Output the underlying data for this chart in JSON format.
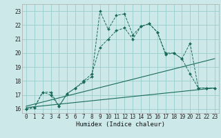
{
  "title": "",
  "xlabel": "Humidex (Indice chaleur)",
  "xlim": [
    -0.5,
    23.5
  ],
  "ylim": [
    15.7,
    23.5
  ],
  "yticks": [
    16,
    17,
    18,
    19,
    20,
    21,
    22,
    23
  ],
  "xticks": [
    0,
    1,
    2,
    3,
    4,
    5,
    6,
    7,
    8,
    9,
    10,
    11,
    12,
    13,
    14,
    15,
    16,
    17,
    18,
    19,
    20,
    21,
    22,
    23
  ],
  "bg_color": "#cce8e8",
  "grid_color": "#99cccc",
  "line_color": "#1a6b5a",
  "line1_x": [
    0,
    1,
    2,
    3,
    4,
    5,
    6,
    7,
    8,
    9,
    10,
    11,
    12,
    13,
    14,
    15,
    16,
    17,
    18,
    19,
    20,
    21,
    22,
    23
  ],
  "line1_y": [
    16.0,
    16.1,
    17.2,
    17.2,
    16.2,
    17.1,
    17.5,
    17.9,
    18.3,
    23.0,
    21.7,
    22.7,
    22.8,
    21.3,
    21.9,
    22.1,
    21.5,
    20.0,
    20.0,
    19.6,
    18.5,
    17.5,
    17.5,
    17.5
  ],
  "line2_x": [
    0,
    1,
    2,
    3,
    4,
    5,
    6,
    7,
    8,
    9,
    10,
    11,
    12,
    13,
    14,
    15,
    16,
    17,
    18,
    19,
    20,
    21,
    22,
    23
  ],
  "line2_y": [
    16.0,
    16.1,
    17.2,
    17.0,
    16.2,
    17.1,
    17.5,
    18.0,
    18.5,
    20.4,
    21.0,
    21.6,
    21.8,
    21.0,
    21.9,
    22.1,
    21.5,
    19.9,
    20.0,
    19.6,
    20.7,
    17.5,
    17.5,
    17.5
  ],
  "line3_x": [
    0,
    23
  ],
  "line3_y": [
    16.2,
    19.6
  ],
  "line4_x": [
    0,
    23
  ],
  "line4_y": [
    16.1,
    17.5
  ]
}
